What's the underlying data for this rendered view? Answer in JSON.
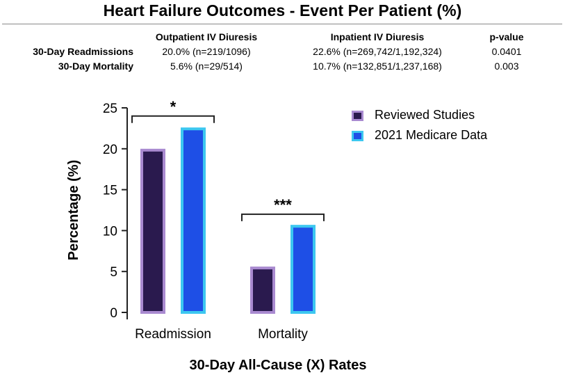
{
  "title": "Heart Failure Outcomes - Event Per Patient  (%)",
  "summary_table": {
    "headers": [
      "",
      "Outpatient IV Diuresis",
      "Inpatient IV Diuresis",
      "p-value"
    ],
    "rows": [
      [
        "30-Day Readmissions",
        "20.0% (n=219/1096)",
        "22.6% (n=269,742/1,192,324)",
        "0.0401"
      ],
      [
        "30-Day Mortality",
        "5.6% (n=29/514)",
        "10.7% (n=132,851/1,237,168)",
        "0.003"
      ]
    ]
  },
  "colors": {
    "reviewed_fill": "#2a1a4e",
    "reviewed_border": "#a98ad0",
    "medicare_fill": "#1e4fe6",
    "medicare_border": "#3cc7f0",
    "axis": "#222222"
  },
  "chart_data": {
    "type": "bar",
    "title": "Heart Failure Outcomes - Event Per Patient  (%)",
    "xlabel": "30-Day All-Cause (X) Rates",
    "ylabel": "Percentage  (%)",
    "ylim": [
      0,
      25
    ],
    "yticks": [
      0,
      5,
      10,
      15,
      20,
      25
    ],
    "ytick_labels": [
      "0",
      "5",
      "10",
      "15",
      "20",
      "25"
    ],
    "categories": [
      "Readmission",
      "Mortality"
    ],
    "series": [
      {
        "name": "Reviewed Studies",
        "values": [
          20.0,
          5.6
        ]
      },
      {
        "name": "2021 Medicare Data",
        "values": [
          22.6,
          10.7
        ]
      }
    ],
    "legend_position": "top-right",
    "significance": [
      {
        "category": "Readmission",
        "label": "*",
        "level": 24
      },
      {
        "category": "Mortality",
        "label": "***",
        "level": 12
      }
    ]
  }
}
